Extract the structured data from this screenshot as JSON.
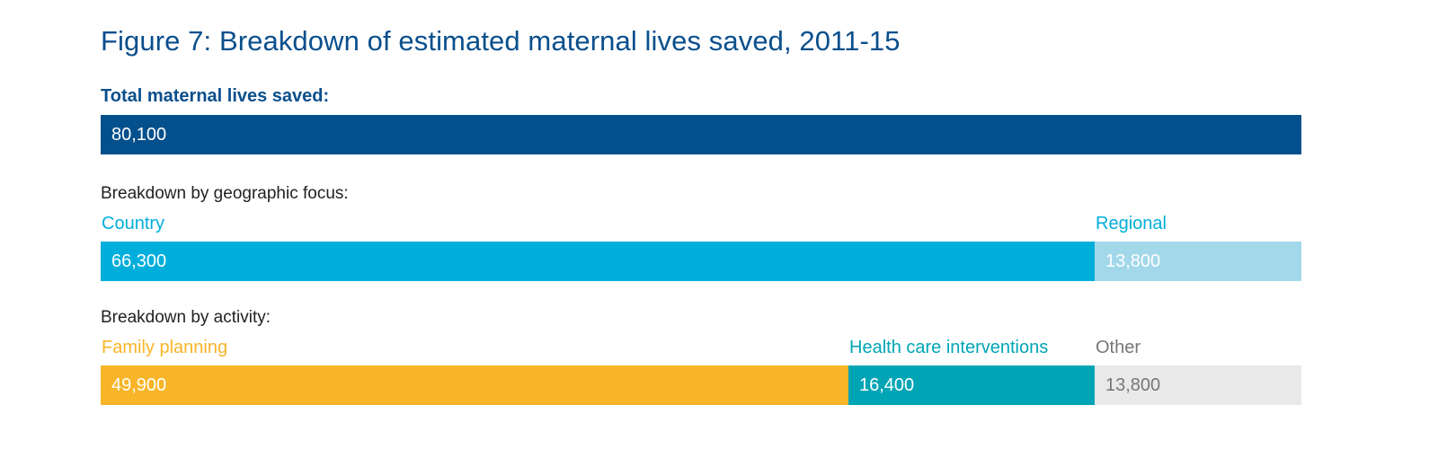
{
  "chart_data": {
    "type": "bar",
    "title": "Figure 7: Breakdown of estimated maternal lives saved, 2011-15",
    "total_max": 80100,
    "rows": [
      {
        "heading": "Total maternal lives saved:",
        "heading_bold": true,
        "segments": [
          {
            "name": "",
            "value": 80100,
            "value_label": "80,100",
            "color": "#04508c",
            "label_color": "#04508c",
            "value_text_color": "#ffffff"
          }
        ]
      },
      {
        "heading": "Breakdown by geographic focus:",
        "heading_bold": false,
        "segments": [
          {
            "name": "Country",
            "value": 66300,
            "value_label": "66,300",
            "color": "#00aedb",
            "label_color": "#00aedb",
            "value_text_color": "#ffffff"
          },
          {
            "name": "Regional",
            "value": 13800,
            "value_label": "13,800",
            "color": "#a2d8ea",
            "label_color": "#00aedb",
            "value_text_color": "#ffffff"
          }
        ]
      },
      {
        "heading": "Breakdown by activity:",
        "heading_bold": false,
        "segments": [
          {
            "name": "Family planning",
            "value": 49900,
            "value_label": "49,900",
            "color": "#f8b527",
            "label_color": "#f8b527",
            "value_text_color": "#ffffff"
          },
          {
            "name": "Health care interventions",
            "value": 16400,
            "value_label": "16,400",
            "color": "#00a5b5",
            "label_color": "#00a5b5",
            "value_text_color": "#ffffff"
          },
          {
            "name": "Other",
            "value": 13800,
            "value_label": "13,800",
            "color": "#e9e9e9",
            "label_color": "#777777",
            "value_text_color": "#777777"
          }
        ]
      }
    ]
  }
}
